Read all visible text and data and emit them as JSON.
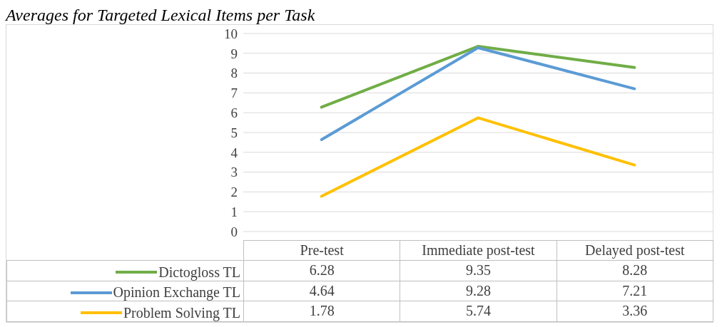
{
  "chart_data": {
    "type": "line",
    "title": "Averages for Targeted Lexical Items per Task",
    "categories": [
      "Pre-test",
      "Immediate post-test",
      "Delayed post-test"
    ],
    "series": [
      {
        "name": "Dictogloss TL",
        "color": "#70ad47",
        "values": [
          6.28,
          9.35,
          8.28
        ]
      },
      {
        "name": "Opinion Exchange TL",
        "color": "#5b9bd5",
        "values": [
          4.64,
          9.28,
          7.21
        ]
      },
      {
        "name": "Problem Solving TL",
        "color": "#ffc000",
        "values": [
          1.78,
          5.74,
          3.36
        ]
      }
    ],
    "ylim": [
      0,
      10
    ],
    "yticks": [
      0,
      1,
      2,
      3,
      4,
      5,
      6,
      7,
      8,
      9,
      10
    ],
    "grid": "y",
    "legend": "bottom",
    "data_labels": true,
    "marker": "none",
    "line_style": "solid"
  }
}
